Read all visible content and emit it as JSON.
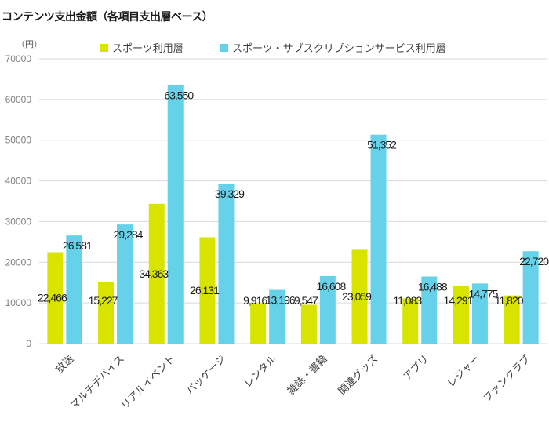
{
  "title": "コンテンツ支出金額（各項目支出層ベース）",
  "unit_label": "（円）",
  "chart_data": {
    "type": "bar",
    "title": "コンテンツ支出金額（各項目支出層ベース）",
    "xlabel": "",
    "ylabel": "（円）",
    "ylim": [
      0,
      70000
    ],
    "yticks": [
      0,
      10000,
      20000,
      30000,
      40000,
      50000,
      60000,
      70000
    ],
    "ytick_labels": [
      "0",
      "10000",
      "20000",
      "30000",
      "40000",
      "50000",
      "60000",
      "70000"
    ],
    "grid": true,
    "legend_position": "top",
    "categories": [
      "放送",
      "マルチデバイス",
      "リアルイベント",
      "パッケージ",
      "レンタル",
      "雑誌・書籍",
      "関連グッズ",
      "アプリ",
      "レジャー",
      "ファンクラブ"
    ],
    "series": [
      {
        "name": "スポーツ利用層",
        "color": "#d9e300",
        "values": [
          22466,
          15227,
          34363,
          26131,
          9916,
          9547,
          23059,
          11083,
          14291,
          11820
        ],
        "labels": [
          "22,466",
          "15,227",
          "34,363",
          "26,131",
          "9,916",
          "9,547",
          "23,059",
          "11,083",
          "14,291",
          "11,820"
        ]
      },
      {
        "name": "スポーツ・サブスクリプションサービス利用層",
        "color": "#66d2ea",
        "values": [
          26581,
          29284,
          63550,
          39329,
          13196,
          16608,
          51352,
          16488,
          14775,
          22720
        ],
        "labels": [
          "26,581",
          "29,284",
          "63,550",
          "39,329",
          "13,196",
          "16,608",
          "51,352",
          "16,488",
          "14,775",
          "22,720"
        ]
      }
    ]
  }
}
